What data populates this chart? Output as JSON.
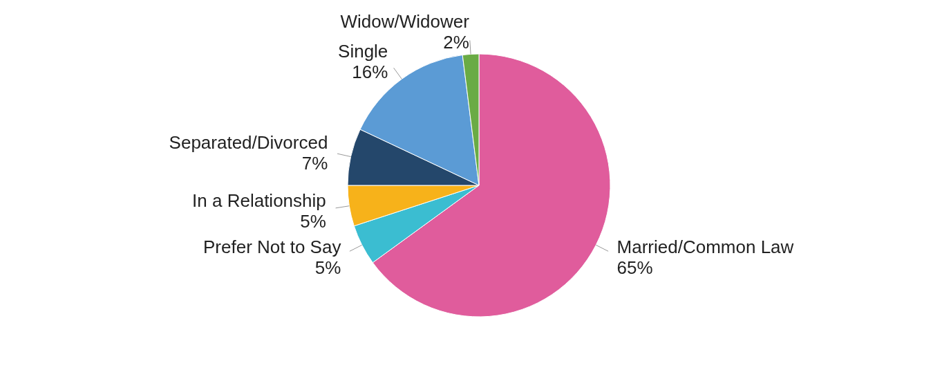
{
  "chart_data": {
    "type": "pie",
    "categories": [
      "Married/Common Law",
      "Prefer Not to Say",
      "In a Relationship",
      "Separated/Divorced",
      "Single",
      "Widow/Widower"
    ],
    "values": [
      65,
      5,
      5,
      7,
      16,
      2
    ],
    "value_labels": [
      "65%",
      "5%",
      "5%",
      "7%",
      "16%",
      "2%"
    ],
    "colors": [
      "#e05c9c",
      "#3bbdd1",
      "#f7b21a",
      "#24476b",
      "#5b9bd5",
      "#6aab45"
    ],
    "legend": false
  }
}
